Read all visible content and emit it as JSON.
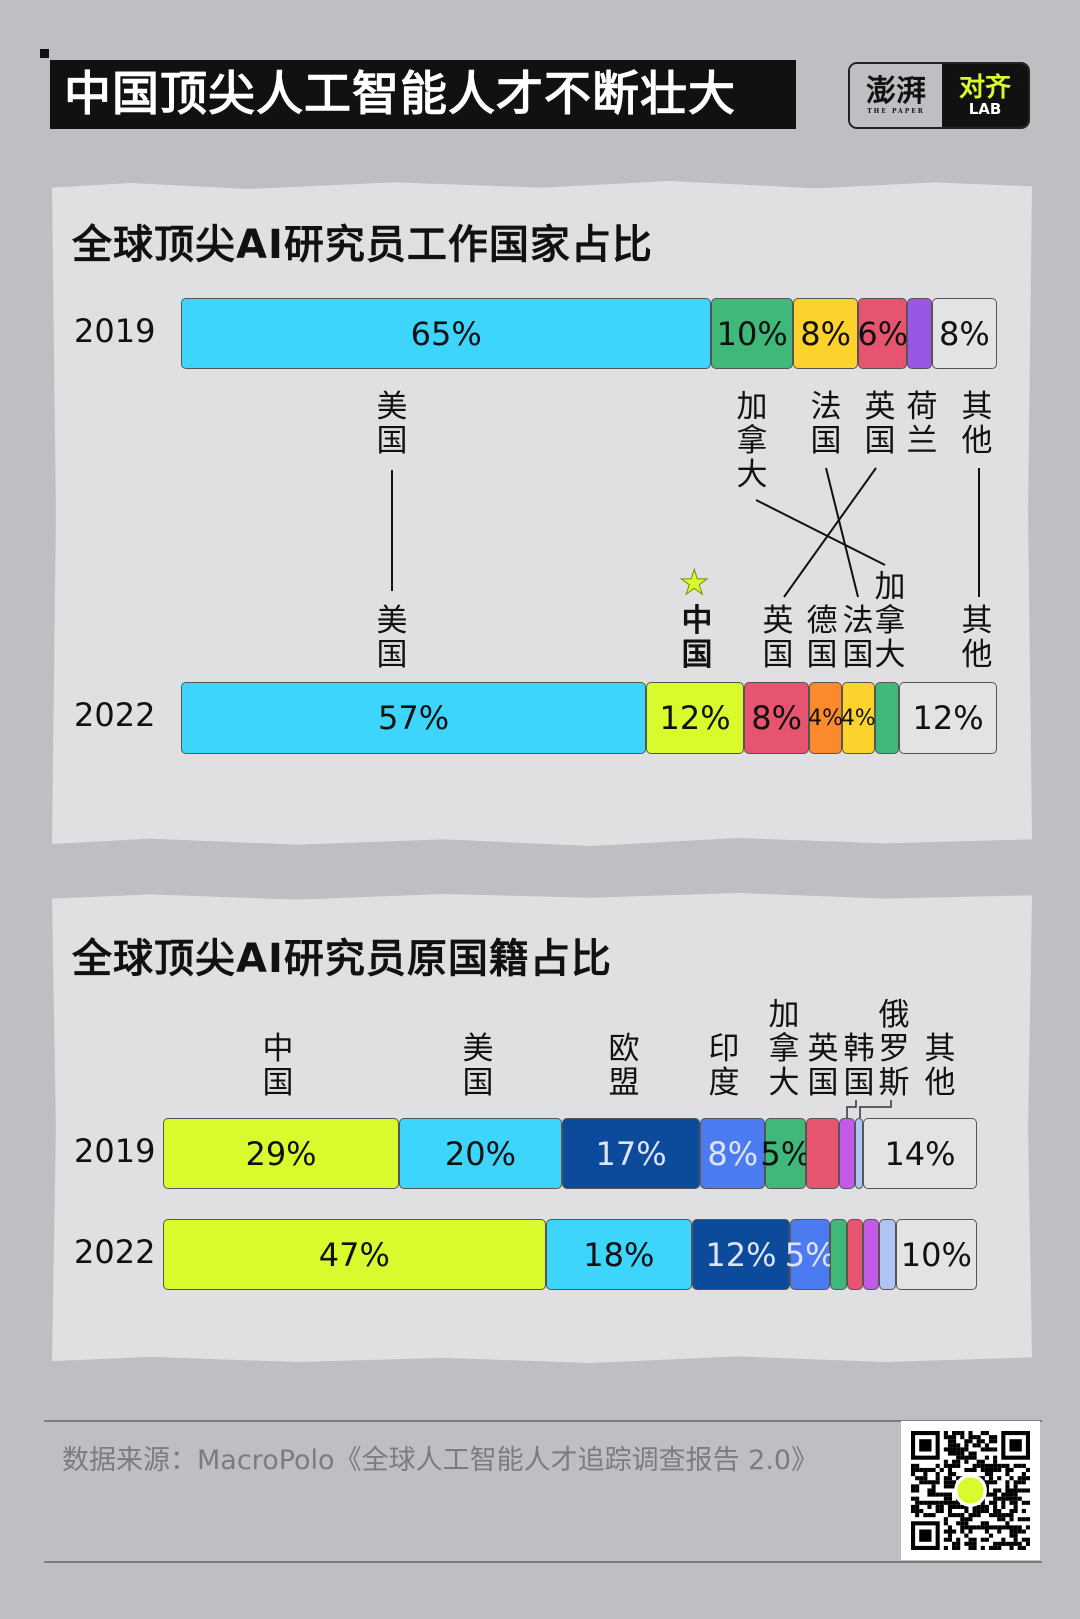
{
  "header": {
    "title": "中国顶尖人工智能人才不断壮大",
    "logo_left": "澎湃",
    "logo_left_sub": "THE PAPER",
    "logo_right": "对齐",
    "logo_right_sub": "LAB"
  },
  "chart_data": [
    {
      "type": "bar",
      "orientation": "horizontal-stacked",
      "title": "全球顶尖AI研究员工作国家占比",
      "unit": "%",
      "xlim": [
        0,
        100
      ],
      "rows": [
        {
          "year": "2019",
          "segments": [
            {
              "name": "美国",
              "value": 65,
              "label": "65%",
              "color": "#3dd5fc"
            },
            {
              "name": "加拿大",
              "value": 10,
              "label": "10%",
              "color": "#3fb87a"
            },
            {
              "name": "法国",
              "value": 8,
              "label": "8%",
              "color": "#fdd22c"
            },
            {
              "name": "英国",
              "value": 6,
              "label": "6%",
              "color": "#e6546f"
            },
            {
              "name": "荷兰",
              "value": 3,
              "label": "",
              "color": "#9a57e4"
            },
            {
              "name": "其他",
              "value": 8,
              "label": "8%",
              "color": "#e3e3e3"
            }
          ]
        },
        {
          "year": "2022",
          "segments": [
            {
              "name": "美国",
              "value": 57,
              "label": "57%",
              "color": "#3dd5fc"
            },
            {
              "name": "中国",
              "value": 12,
              "label": "12%",
              "color": "#d7fb2c"
            },
            {
              "name": "英国",
              "value": 8,
              "label": "8%",
              "color": "#e6546f"
            },
            {
              "name": "德国",
              "value": 4,
              "label": "4%",
              "color": "#fb8a2c"
            },
            {
              "name": "法国",
              "value": 4,
              "label": "4%",
              "color": "#fdd22c"
            },
            {
              "name": "加拿大",
              "value": 3,
              "label": "",
              "color": "#3fb87a"
            },
            {
              "name": "其他",
              "value": 12,
              "label": "12%",
              "color": "#e3e3e3"
            }
          ]
        }
      ],
      "star_marker": "中国"
    },
    {
      "type": "bar",
      "orientation": "horizontal-stacked",
      "title": "全球顶尖AI研究员原国籍占比",
      "unit": "%",
      "xlim": [
        0,
        100
      ],
      "rows": [
        {
          "year": "2019",
          "segments": [
            {
              "name": "中国",
              "value": 29,
              "label": "29%",
              "color": "#d7fb2c"
            },
            {
              "name": "美国",
              "value": 20,
              "label": "20%",
              "color": "#3dd5fc"
            },
            {
              "name": "欧盟",
              "value": 17,
              "label": "17%",
              "color": "#0c4a9c"
            },
            {
              "name": "印度",
              "value": 8,
              "label": "8%",
              "color": "#4b7bf0"
            },
            {
              "name": "加拿大",
              "value": 5,
              "label": "5%",
              "color": "#3fb87a"
            },
            {
              "name": "英国",
              "value": 4,
              "label": "",
              "color": "#e6546f"
            },
            {
              "name": "韩国",
              "value": 2,
              "label": "",
              "color": "#c45ae8"
            },
            {
              "name": "俄罗斯",
              "value": 1,
              "label": "",
              "color": "#afc3f5"
            },
            {
              "name": "其他",
              "value": 14,
              "label": "14%",
              "color": "#e3e3e3"
            }
          ]
        },
        {
          "year": "2022",
          "segments": [
            {
              "name": "中国",
              "value": 47,
              "label": "47%",
              "color": "#d7fb2c"
            },
            {
              "name": "美国",
              "value": 18,
              "label": "18%",
              "color": "#3dd5fc"
            },
            {
              "name": "欧盟",
              "value": 12,
              "label": "12%",
              "color": "#0c4a9c"
            },
            {
              "name": "印度",
              "value": 5,
              "label": "5%",
              "color": "#4b7bf0"
            },
            {
              "name": "加拿大",
              "value": 2,
              "label": "",
              "color": "#3fb87a"
            },
            {
              "name": "英国",
              "value": 2,
              "label": "",
              "color": "#e6546f"
            },
            {
              "name": "韩国",
              "value": 2,
              "label": "",
              "color": "#c45ae8"
            },
            {
              "name": "俄罗斯",
              "value": 2,
              "label": "",
              "color": "#afc3f5"
            },
            {
              "name": "其他",
              "value": 10,
              "label": "10%",
              "color": "#e3e3e3"
            }
          ]
        }
      ]
    }
  ],
  "footer": {
    "source": "数据来源：MacroPolo《全球人工智能人才追踪调查报告 2.0》",
    "qr_logo": "对齐"
  }
}
